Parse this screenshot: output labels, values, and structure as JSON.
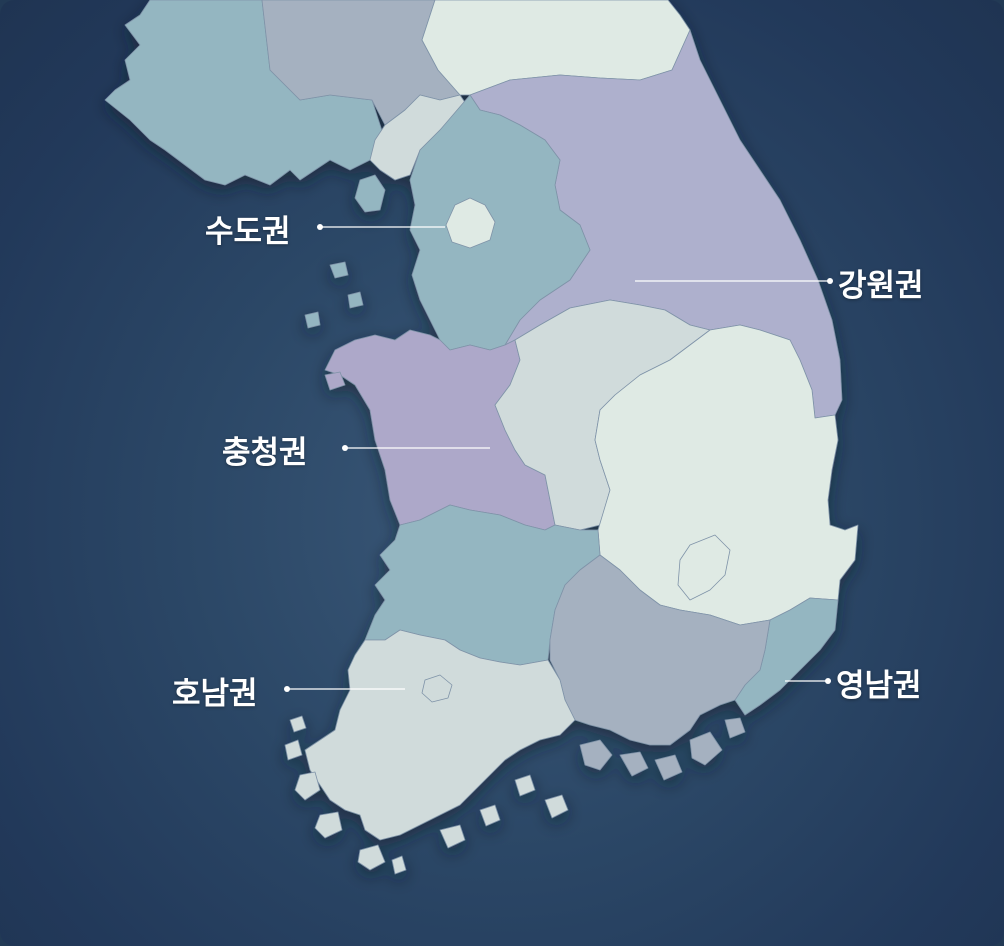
{
  "regions": {
    "sudogwon": {
      "label": "수도권",
      "color": "#94b6c1"
    },
    "gangwon": {
      "label": "강원권",
      "color": "#aeb0cd"
    },
    "chungcheong": {
      "label": "충청권",
      "color": "#ada8c9"
    },
    "honam": {
      "label": "호남권",
      "color": "#d0dbdb"
    },
    "yeongnam": {
      "label": "영남권",
      "color": "#dfeae4"
    }
  },
  "colors": {
    "background": "#2b4766",
    "north_gray": "#a5b1c0",
    "north_teal": "#94b6c1",
    "north_pale": "#dfeae4",
    "leader_line": "#ffffff",
    "label_text": "#ffffff"
  }
}
